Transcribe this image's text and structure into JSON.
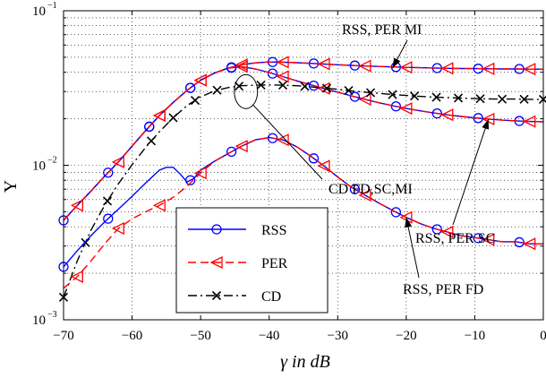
{
  "chart_data": {
    "type": "line",
    "xlabel": "γ in dB",
    "ylabel": "Υ",
    "xlim": [
      -70,
      0
    ],
    "ylim": [
      0.001,
      0.1
    ],
    "yscale": "log",
    "grid": true,
    "x_ticks": [
      -70,
      -60,
      -50,
      -40,
      -30,
      -20,
      -10,
      0
    ],
    "x_tick_labels": [
      "−70",
      "−60",
      "−50",
      "−40",
      "−30",
      "−20",
      "−10",
      "0"
    ],
    "y_ticks": [
      0.001,
      0.01,
      0.1
    ],
    "y_tick_labels": [
      {
        "base": "10",
        "exp": "−3"
      },
      {
        "base": "10",
        "exp": "−2"
      },
      {
        "base": "10",
        "exp": "−1"
      }
    ],
    "colors": {
      "RSS": "#0000ff",
      "PER": "#ff0000",
      "CD": "#000000"
    },
    "legend": {
      "position": "bottom-center",
      "entries": [
        {
          "name": "RSS",
          "marker": "circle",
          "line": "solid",
          "color": "#0000ff"
        },
        {
          "name": "PER",
          "marker": "triangle-left",
          "line": "dashed",
          "color": "#ff0000"
        },
        {
          "name": "CD",
          "marker": "x",
          "line": "dashdot",
          "color": "#000000"
        }
      ]
    },
    "series": [
      {
        "name": "RSS",
        "group": "MI",
        "line": "solid",
        "color": "#0000ff",
        "marker": "circle",
        "x": [
          -70,
          -68,
          -66,
          -64,
          -62,
          -60,
          -58,
          -56,
          -54,
          -52,
          -50,
          -48,
          -46,
          -44,
          -42,
          -40,
          -38,
          -36,
          -34,
          -32,
          -30,
          -28,
          -26,
          -24,
          -22,
          -20,
          -18,
          -16,
          -14,
          -12,
          -10,
          -8,
          -6,
          -4,
          -2,
          0
        ],
        "y": [
          0.0044,
          0.0055,
          0.0068,
          0.0085,
          0.0105,
          0.0133,
          0.0168,
          0.021,
          0.0255,
          0.0305,
          0.0355,
          0.0395,
          0.0425,
          0.0448,
          0.046,
          0.0466,
          0.0465,
          0.0461,
          0.0457,
          0.0452,
          0.0447,
          0.0443,
          0.0439,
          0.0436,
          0.0433,
          0.043,
          0.0428,
          0.0426,
          0.0424,
          0.0423,
          0.0422,
          0.0421,
          0.042,
          0.042,
          0.0419,
          0.0419
        ],
        "marker_x": [
          -70,
          -63.5,
          -57.5,
          -51.5,
          -45.5,
          -39.5,
          -33.5,
          -27.5,
          -21.5,
          -15.5,
          -9.5,
          -3.5
        ]
      },
      {
        "name": "PER",
        "group": "MI",
        "line": "dashed",
        "color": "#ff0000",
        "marker": "triangle-left",
        "x": [
          -70,
          -68,
          -66,
          -64,
          -62,
          -60,
          -58,
          -56,
          -54,
          -52,
          -50,
          -48,
          -46,
          -44,
          -42,
          -40,
          -38,
          -36,
          -34,
          -32,
          -30,
          -28,
          -26,
          -24,
          -22,
          -20,
          -18,
          -16,
          -14,
          -12,
          -10,
          -8,
          -6,
          -4,
          -2,
          0
        ],
        "y": [
          0.0044,
          0.0055,
          0.0068,
          0.0085,
          0.0105,
          0.0133,
          0.0168,
          0.021,
          0.0255,
          0.0305,
          0.0355,
          0.0395,
          0.0425,
          0.0448,
          0.046,
          0.0466,
          0.0465,
          0.0461,
          0.0457,
          0.0452,
          0.0447,
          0.0443,
          0.0439,
          0.0436,
          0.0433,
          0.043,
          0.0428,
          0.0426,
          0.0424,
          0.0423,
          0.0422,
          0.0421,
          0.042,
          0.042,
          0.0419,
          0.0419
        ],
        "marker_x": [
          -68,
          -62,
          -56,
          -50,
          -44,
          -38,
          -32,
          -26,
          -20,
          -14,
          -8,
          -2
        ]
      },
      {
        "name": "RSS",
        "group": "SC",
        "line": "solid",
        "color": "#0000ff",
        "marker": "circle",
        "x": [
          -70,
          -68,
          -66,
          -64,
          -62,
          -60,
          -58,
          -56,
          -54,
          -52,
          -50,
          -48,
          -46,
          -44,
          -42,
          -40,
          -38,
          -36,
          -34,
          -32,
          -30,
          -28,
          -26,
          -24,
          -22,
          -20,
          -18,
          -16,
          -14,
          -12,
          -10,
          -8,
          -6,
          -4,
          -2,
          0
        ],
        "y": [
          0.0044,
          0.0055,
          0.0068,
          0.0085,
          0.0105,
          0.0133,
          0.0168,
          0.021,
          0.0255,
          0.0305,
          0.0355,
          0.0395,
          0.0425,
          0.0435,
          0.042,
          0.0398,
          0.0375,
          0.0352,
          0.0332,
          0.0314,
          0.0297,
          0.0281,
          0.0267,
          0.0254,
          0.0243,
          0.0233,
          0.0225,
          0.0218,
          0.0212,
          0.0207,
          0.0203,
          0.0199,
          0.0196,
          0.0194,
          0.0192,
          0.0191
        ],
        "marker_x": [
          -57.5,
          -51.5,
          -45.5,
          -39.5,
          -33.5,
          -27.5,
          -21.5,
          -15.5,
          -9.5,
          -3.5
        ]
      },
      {
        "name": "PER",
        "group": "SC",
        "line": "dashed",
        "color": "#ff0000",
        "marker": "triangle-left",
        "x": [
          -70,
          -68,
          -66,
          -64,
          -62,
          -60,
          -58,
          -56,
          -54,
          -52,
          -50,
          -48,
          -46,
          -44,
          -42,
          -40,
          -38,
          -36,
          -34,
          -32,
          -30,
          -28,
          -26,
          -24,
          -22,
          -20,
          -18,
          -16,
          -14,
          -12,
          -10,
          -8,
          -6,
          -4,
          -2,
          0
        ],
        "y": [
          0.0044,
          0.0055,
          0.0068,
          0.0085,
          0.0105,
          0.0133,
          0.0168,
          0.021,
          0.0255,
          0.0305,
          0.0355,
          0.0395,
          0.0425,
          0.0435,
          0.042,
          0.0398,
          0.0375,
          0.0352,
          0.0332,
          0.0314,
          0.0297,
          0.0281,
          0.0267,
          0.0254,
          0.0243,
          0.0233,
          0.0225,
          0.0218,
          0.0212,
          0.0207,
          0.0203,
          0.0199,
          0.0196,
          0.0194,
          0.0192,
          0.0191
        ],
        "marker_x": [
          -56,
          -50,
          -44,
          -38,
          -32,
          -26,
          -20,
          -14,
          -8,
          -2
        ]
      },
      {
        "name": "CD",
        "group": "FD,SC,MI",
        "line": "dashdot",
        "color": "#000000",
        "marker": "x",
        "x": [
          -70,
          -68,
          -66,
          -64,
          -62,
          -60,
          -58,
          -56,
          -54,
          -52,
          -50,
          -48,
          -46,
          -44,
          -42,
          -40,
          -38,
          -36,
          -34,
          -32,
          -30,
          -28,
          -26,
          -24,
          -22,
          -20,
          -18,
          -16,
          -14,
          -12,
          -10,
          -8,
          -6,
          -4,
          -2,
          0
        ],
        "y": [
          0.0014,
          0.0024,
          0.0038,
          0.0055,
          0.0076,
          0.0101,
          0.0131,
          0.0165,
          0.0203,
          0.0243,
          0.0277,
          0.0303,
          0.0318,
          0.0327,
          0.033,
          0.0331,
          0.033,
          0.0327,
          0.0322,
          0.0316,
          0.031,
          0.0303,
          0.0297,
          0.0292,
          0.0287,
          0.0283,
          0.0279,
          0.0276,
          0.0274,
          0.0272,
          0.027,
          0.0269,
          0.0268,
          0.0268,
          0.0267,
          0.0267
        ],
        "marker_x": [
          -70,
          -66.8,
          -63.6,
          -57.2,
          -54,
          -50.8,
          -47.6,
          -44.4,
          -41.2,
          -38,
          -34.8,
          -31.6,
          -28.4,
          -25.2,
          -22,
          -18.8,
          -15.6,
          -12.4,
          -9.2,
          -6,
          -2.8,
          0
        ]
      },
      {
        "name": "RSS",
        "group": "FD",
        "line": "solid",
        "color": "#0000ff",
        "marker": "circle",
        "x": [
          -70,
          -68,
          -66,
          -64,
          -62,
          -60,
          -58,
          -56,
          -55,
          -54,
          -53,
          -52,
          -51,
          -50,
          -48,
          -46,
          -44,
          -42,
          -40,
          -38,
          -36,
          -34,
          -32,
          -30,
          -28,
          -26,
          -24,
          -22,
          -20,
          -18,
          -16,
          -14,
          -12,
          -10,
          -8,
          -6,
          -4,
          -2,
          0
        ],
        "y": [
          0.0022,
          0.0028,
          0.0035,
          0.0043,
          0.0052,
          0.0063,
          0.0077,
          0.0093,
          0.0097,
          0.0097,
          0.0088,
          0.0078,
          0.0082,
          0.0093,
          0.0106,
          0.0119,
          0.0133,
          0.0146,
          0.0151,
          0.0146,
          0.0132,
          0.0115,
          0.0099,
          0.0084,
          0.0072,
          0.0064,
          0.0057,
          0.0051,
          0.0046,
          0.0042,
          0.0039,
          0.0037,
          0.0035,
          0.0034,
          0.0033,
          0.0032,
          0.0032,
          0.0031,
          0.0031
        ],
        "marker_x": [
          -70,
          -63.5,
          -51.5,
          -45.5,
          -39.5,
          -33.5,
          -27.5,
          -21.5,
          -15.5,
          -9.5,
          -3.5
        ]
      },
      {
        "name": "PER",
        "group": "FD",
        "line": "dashed",
        "color": "#ff0000",
        "marker": "triangle-left",
        "x": [
          -70,
          -68,
          -66,
          -64,
          -62,
          -60,
          -58,
          -56,
          -54,
          -52,
          -50,
          -48,
          -46,
          -44,
          -42,
          -40,
          -38,
          -36,
          -34,
          -32,
          -30,
          -28,
          -26,
          -24,
          -22,
          -20,
          -18,
          -16,
          -14,
          -12,
          -10,
          -8,
          -6,
          -4,
          -2,
          0
        ],
        "y": [
          0.0016,
          0.0019,
          0.0024,
          0.0031,
          0.0039,
          0.0045,
          0.005,
          0.0055,
          0.0062,
          0.0073,
          0.0089,
          0.0106,
          0.0119,
          0.0133,
          0.0146,
          0.0151,
          0.0146,
          0.0132,
          0.0115,
          0.0099,
          0.0084,
          0.0072,
          0.0064,
          0.0057,
          0.0051,
          0.0046,
          0.0042,
          0.0039,
          0.0037,
          0.0035,
          0.0034,
          0.0033,
          0.0032,
          0.0032,
          0.0031,
          0.0031
        ],
        "marker_x": [
          -68,
          -62,
          -56,
          -50,
          -44,
          -38,
          -32,
          -26,
          -20,
          -14,
          -8,
          -2
        ]
      }
    ],
    "annotations": [
      {
        "text": "RSS, PER MI",
        "arrow_to": [
          -22,
          0.0425
        ]
      },
      {
        "text": "CD FD,SC,MI",
        "arrow_to": [
          -43,
          0.03
        ],
        "ellipse": true
      },
      {
        "text": "RSS, PER SC",
        "arrow_to": [
          -8,
          0.0199
        ]
      },
      {
        "text": "RSS, PER FD",
        "arrow_to": [
          -20,
          0.0046
        ]
      }
    ]
  }
}
